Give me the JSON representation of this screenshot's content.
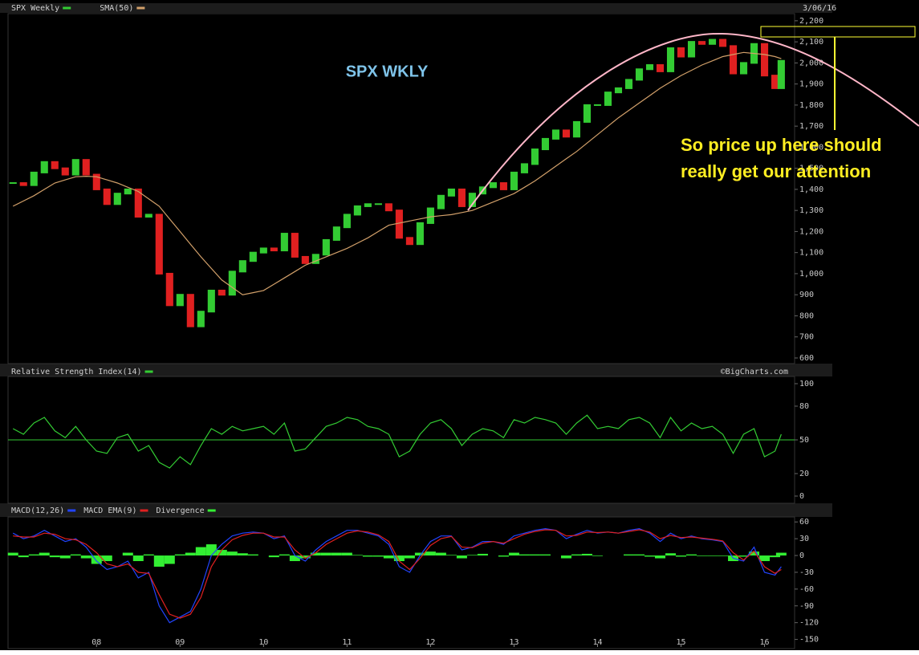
{
  "chart_data": [
    {
      "type": "candlestick",
      "title": "SPX WKLY",
      "date": "3/06/16",
      "source": "©BigCharts.com",
      "annotation": [
        "So price up here should",
        "really get our attention"
      ],
      "xlim": [
        2006.94,
        2016.36
      ],
      "ylim": [
        577,
        2230
      ],
      "yticks": [
        600,
        700,
        800,
        900,
        {
          "value": 1000,
          "label": "1,000"
        },
        {
          "value": 1100,
          "label": "1,100"
        },
        {
          "value": 1200,
          "label": "1,200"
        },
        {
          "value": 1300,
          "label": "1,300"
        },
        {
          "value": 1400,
          "label": "1,400"
        },
        {
          "value": 1500,
          "label": "1,500"
        },
        {
          "value": 1600,
          "label": "1,600"
        },
        {
          "value": 1700,
          "label": "1,700"
        },
        {
          "value": 1800,
          "label": "1,800"
        },
        {
          "value": 1900,
          "label": "1,900"
        },
        {
          "value": 2000,
          "label": "2,000"
        },
        {
          "value": 2100,
          "label": "2,100"
        },
        {
          "value": 2200,
          "label": "2,200"
        }
      ],
      "x": [
        2007.0,
        2007.125,
        2007.25,
        2007.375,
        2007.5,
        2007.625,
        2007.75,
        2007.875,
        2008.0,
        2008.125,
        2008.25,
        2008.375,
        2008.5,
        2008.625,
        2008.75,
        2008.875,
        2009.0,
        2009.125,
        2009.25,
        2009.375,
        2009.5,
        2009.625,
        2009.75,
        2009.875,
        2010.0,
        2010.125,
        2010.25,
        2010.375,
        2010.5,
        2010.625,
        2010.75,
        2010.875,
        2011.0,
        2011.125,
        2011.25,
        2011.375,
        2011.5,
        2011.625,
        2011.75,
        2011.875,
        2012.0,
        2012.125,
        2012.25,
        2012.375,
        2012.5,
        2012.625,
        2012.75,
        2012.875,
        2013.0,
        2013.125,
        2013.25,
        2013.375,
        2013.5,
        2013.625,
        2013.75,
        2013.875,
        2014.0,
        2014.125,
        2014.25,
        2014.375,
        2014.5,
        2014.625,
        2014.75,
        2014.875,
        2015.0,
        2015.125,
        2015.25,
        2015.375,
        2015.5,
        2015.625,
        2015.75,
        2015.875,
        2016.0,
        2016.125,
        2016.2
      ],
      "series": [
        {
          "name": "SPX Weekly",
          "color": "#33cc33",
          "down_color": "#e02020",
          "values": [
            1430,
            1420,
            1480,
            1530,
            1500,
            1470,
            1540,
            1470,
            1400,
            1330,
            1380,
            1400,
            1270,
            1280,
            1000,
            850,
            900,
            750,
            820,
            920,
            900,
            1010,
            1060,
            1100,
            1120,
            1110,
            1190,
            1080,
            1050,
            1090,
            1160,
            1220,
            1280,
            1320,
            1330,
            1330,
            1300,
            1170,
            1140,
            1240,
            1310,
            1370,
            1400,
            1320,
            1380,
            1410,
            1430,
            1400,
            1480,
            1520,
            1590,
            1640,
            1680,
            1650,
            1720,
            1800,
            1800,
            1860,
            1880,
            1920,
            1970,
            1990,
            1960,
            2070,
            2030,
            2100,
            2090,
            2110,
            2080,
            1950,
            2000,
            2090,
            1940,
            1880,
            2010
          ]
        },
        {
          "name": "SMA(50)",
          "color": "#d2a06a",
          "values": [
            1320,
            1345,
            1370,
            1400,
            1430,
            1445,
            1460,
            1462,
            1460,
            1445,
            1430,
            1410,
            1390,
            1355,
            1320,
            1260,
            1200,
            1140,
            1080,
            1025,
            970,
            935,
            900,
            910,
            920,
            950,
            980,
            1010,
            1040,
            1060,
            1080,
            1100,
            1120,
            1145,
            1170,
            1200,
            1230,
            1240,
            1250,
            1260,
            1270,
            1275,
            1280,
            1290,
            1300,
            1320,
            1340,
            1360,
            1380,
            1410,
            1440,
            1475,
            1510,
            1545,
            1580,
            1620,
            1660,
            1700,
            1740,
            1775,
            1810,
            1845,
            1880,
            1910,
            1940,
            1965,
            1990,
            2010,
            2030,
            2040,
            2050,
            2045,
            2040,
            2030,
            2020
          ]
        }
      ]
    },
    {
      "type": "line",
      "xlim": [
        2006.94,
        2016.36
      ],
      "ylim": [
        -5,
        105.7
      ],
      "yticks": [
        0,
        20,
        50,
        80,
        100
      ],
      "reference": 50,
      "x": [
        2007.0,
        2007.125,
        2007.25,
        2007.375,
        2007.5,
        2007.625,
        2007.75,
        2007.875,
        2008.0,
        2008.125,
        2008.25,
        2008.375,
        2008.5,
        2008.625,
        2008.75,
        2008.875,
        2009.0,
        2009.125,
        2009.25,
        2009.375,
        2009.5,
        2009.625,
        2009.75,
        2009.875,
        2010.0,
        2010.125,
        2010.25,
        2010.375,
        2010.5,
        2010.625,
        2010.75,
        2010.875,
        2011.0,
        2011.125,
        2011.25,
        2011.375,
        2011.5,
        2011.625,
        2011.75,
        2011.875,
        2012.0,
        2012.125,
        2012.25,
        2012.375,
        2012.5,
        2012.625,
        2012.75,
        2012.875,
        2013.0,
        2013.125,
        2013.25,
        2013.375,
        2013.5,
        2013.625,
        2013.75,
        2013.875,
        2014.0,
        2014.125,
        2014.25,
        2014.375,
        2014.5,
        2014.625,
        2014.75,
        2014.875,
        2015.0,
        2015.125,
        2015.25,
        2015.375,
        2015.5,
        2015.625,
        2015.75,
        2015.875,
        2016.0,
        2016.125,
        2016.2
      ],
      "series": [
        {
          "name": "Relative Strength Index(14)",
          "color": "#33cc33",
          "values": [
            60,
            55,
            65,
            70,
            58,
            52,
            62,
            50,
            40,
            38,
            52,
            55,
            40,
            45,
            30,
            25,
            35,
            28,
            45,
            60,
            55,
            62,
            58,
            60,
            62,
            55,
            65,
            40,
            42,
            52,
            62,
            65,
            70,
            68,
            62,
            60,
            55,
            35,
            40,
            55,
            65,
            68,
            60,
            45,
            55,
            60,
            58,
            52,
            68,
            65,
            70,
            68,
            65,
            55,
            65,
            72,
            60,
            62,
            60,
            68,
            70,
            65,
            52,
            70,
            58,
            65,
            60,
            62,
            55,
            38,
            55,
            60,
            35,
            40,
            55
          ]
        }
      ]
    },
    {
      "type": "macd",
      "xlim": [
        2006.94,
        2016.36
      ],
      "ylim": [
        -163.5,
        67.5
      ],
      "yticks": [
        60,
        30,
        0,
        -30,
        -60,
        -90,
        -120,
        -150
      ],
      "xticks": [
        {
          "value": 2008,
          "label": "08"
        },
        {
          "value": 2009,
          "label": "09"
        },
        {
          "value": 2010,
          "label": "10"
        },
        {
          "value": 2011,
          "label": "11"
        },
        {
          "value": 2012,
          "label": "12"
        },
        {
          "value": 2013,
          "label": "13"
        },
        {
          "value": 2014,
          "label": "14"
        },
        {
          "value": 2015,
          "label": "15"
        },
        {
          "value": 2016,
          "label": "16"
        }
      ],
      "x": [
        2007.0,
        2007.125,
        2007.25,
        2007.375,
        2007.5,
        2007.625,
        2007.75,
        2007.875,
        2008.0,
        2008.125,
        2008.25,
        2008.375,
        2008.5,
        2008.625,
        2008.75,
        2008.875,
        2009.0,
        2009.125,
        2009.25,
        2009.375,
        2009.5,
        2009.625,
        2009.75,
        2009.875,
        2010.0,
        2010.125,
        2010.25,
        2010.375,
        2010.5,
        2010.625,
        2010.75,
        2010.875,
        2011.0,
        2011.125,
        2011.25,
        2011.375,
        2011.5,
        2011.625,
        2011.75,
        2011.875,
        2012.0,
        2012.125,
        2012.25,
        2012.375,
        2012.5,
        2012.625,
        2012.75,
        2012.875,
        2013.0,
        2013.125,
        2013.25,
        2013.375,
        2013.5,
        2013.625,
        2013.75,
        2013.875,
        2014.0,
        2014.125,
        2014.25,
        2014.375,
        2014.5,
        2014.625,
        2014.75,
        2014.875,
        2015.0,
        2015.125,
        2015.25,
        2015.375,
        2015.5,
        2015.625,
        2015.75,
        2015.875,
        2016.0,
        2016.125,
        2016.2
      ],
      "series": [
        {
          "name": "MACD(12,26)",
          "color": "#2244ff",
          "values": [
            40,
            30,
            35,
            45,
            35,
            25,
            30,
            15,
            -10,
            -25,
            -20,
            -10,
            -40,
            -30,
            -90,
            -120,
            -110,
            -100,
            -60,
            0,
            20,
            35,
            40,
            42,
            40,
            30,
            35,
            0,
            -10,
            10,
            25,
            35,
            45,
            45,
            40,
            35,
            20,
            -20,
            -30,
            0,
            25,
            35,
            35,
            10,
            15,
            25,
            25,
            20,
            35,
            40,
            45,
            48,
            45,
            30,
            38,
            45,
            40,
            42,
            40,
            45,
            48,
            40,
            25,
            40,
            30,
            35,
            30,
            28,
            25,
            -5,
            -10,
            15,
            -30,
            -35,
            -20
          ]
        },
        {
          "name": "MACD EMA(9)",
          "color": "#e02020",
          "values": [
            35,
            33,
            33,
            40,
            38,
            30,
            28,
            20,
            5,
            -15,
            -20,
            -15,
            -30,
            -32,
            -70,
            -105,
            -112,
            -105,
            -75,
            -20,
            10,
            28,
            36,
            40,
            40,
            33,
            33,
            10,
            -5,
            5,
            20,
            30,
            40,
            44,
            42,
            37,
            25,
            -10,
            -25,
            -5,
            18,
            30,
            34,
            15,
            14,
            22,
            25,
            22,
            30,
            38,
            43,
            46,
            45,
            35,
            36,
            42,
            41,
            42,
            40,
            43,
            46,
            42,
            30,
            36,
            32,
            33,
            31,
            29,
            26,
            5,
            -8,
            8,
            -20,
            -32,
            -25
          ]
        },
        {
          "name": "Divergence",
          "color": "#33ee33",
          "bars": true,
          "values": [
            5,
            -3,
            2,
            5,
            -3,
            -5,
            2,
            -5,
            -15,
            -10,
            0,
            5,
            -10,
            2,
            -20,
            -15,
            2,
            5,
            15,
            20,
            10,
            7,
            4,
            2,
            0,
            -3,
            2,
            -10,
            -5,
            5,
            5,
            5,
            5,
            1,
            -2,
            -2,
            -5,
            -10,
            -5,
            5,
            7,
            5,
            1,
            -5,
            1,
            3,
            0,
            -2,
            5,
            2,
            2,
            2,
            0,
            -5,
            2,
            3,
            -1,
            0,
            0,
            2,
            2,
            -2,
            -5,
            4,
            -2,
            2,
            -1,
            -1,
            -1,
            -10,
            -2,
            7,
            -10,
            -3,
            5
          ]
        }
      ]
    }
  ]
}
